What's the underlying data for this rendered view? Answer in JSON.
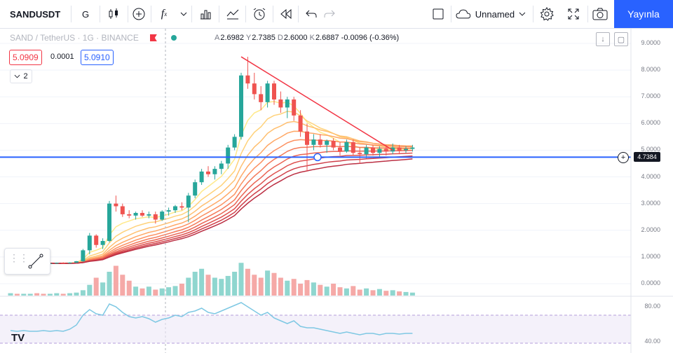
{
  "toolbar": {
    "symbol": "SANDUSDT",
    "interval": "G",
    "layout_name": "Unnamed",
    "publish_label": "Yayınla"
  },
  "legend": {
    "title": "SAND / TetherUS · 1G · BINANCE",
    "open_key": "A",
    "open": "2.6982",
    "high_key": "Y",
    "high": "2.7385",
    "low_key": "D",
    "low": "2.6000",
    "close_key": "K",
    "close": "2.6887",
    "change": "-0.0096 (-0.36%)",
    "sell_price": "5.0909",
    "spread": "0.0001",
    "buy_price": "5.0910",
    "indicators_count": "2"
  },
  "price_axis": [
    "9.0000",
    "8.0000",
    "7.0000",
    "6.0000",
    "5.0000",
    "4.0000",
    "3.0000",
    "2.0000",
    "1.0000",
    "0.0000"
  ],
  "current_price_label": "4.7384",
  "rsi_axis": [
    "80.00",
    "40.00"
  ],
  "logo": "TV",
  "colors": {
    "up": "#26a69a",
    "down": "#ef5350",
    "horizontal_line": "#2962ff",
    "trend_line": "#f23645",
    "rsi_line": "#7ec8e3",
    "publish": "#2962ff"
  },
  "chart_data": {
    "type": "candlestick",
    "series": [
      {
        "name": "SAND / TetherUS",
        "values": [
          [
            0.75,
            0.78,
            0.72,
            0.76
          ],
          [
            0.76,
            0.78,
            0.74,
            0.75
          ],
          [
            0.75,
            0.77,
            0.73,
            0.76
          ],
          [
            0.76,
            0.78,
            0.74,
            0.77
          ],
          [
            0.77,
            0.79,
            0.75,
            0.76
          ],
          [
            0.76,
            0.78,
            0.74,
            0.75
          ],
          [
            0.75,
            0.77,
            0.73,
            0.76
          ],
          [
            0.76,
            0.79,
            0.74,
            0.78
          ],
          [
            0.78,
            0.8,
            0.76,
            0.77
          ],
          [
            0.77,
            0.8,
            0.75,
            0.79
          ],
          [
            0.79,
            0.85,
            0.77,
            0.84
          ],
          [
            0.84,
            1.3,
            0.82,
            1.25
          ],
          [
            1.25,
            1.9,
            1.1,
            1.8
          ],
          [
            1.8,
            1.85,
            1.35,
            1.45
          ],
          [
            1.45,
            1.7,
            1.3,
            1.6
          ],
          [
            1.6,
            3.1,
            1.55,
            3.0
          ],
          [
            3.0,
            3.3,
            2.7,
            2.9
          ],
          [
            2.9,
            3.0,
            2.5,
            2.6
          ],
          [
            2.6,
            2.75,
            2.45,
            2.55
          ],
          [
            2.55,
            2.7,
            2.4,
            2.65
          ],
          [
            2.65,
            2.75,
            2.5,
            2.55
          ],
          [
            2.55,
            2.7,
            2.45,
            2.6
          ],
          [
            2.6,
            2.7,
            2.25,
            2.4
          ],
          [
            2.4,
            2.75,
            2.35,
            2.7
          ],
          [
            2.7,
            2.85,
            2.55,
            2.75
          ],
          [
            2.75,
            2.95,
            2.65,
            2.9
          ],
          [
            2.9,
            3.05,
            2.75,
            2.85
          ],
          [
            2.85,
            3.4,
            2.3,
            3.3
          ],
          [
            3.3,
            3.9,
            3.2,
            3.8
          ],
          [
            3.8,
            4.3,
            3.7,
            4.2
          ],
          [
            4.2,
            4.4,
            4.0,
            4.1
          ],
          [
            4.1,
            4.4,
            3.9,
            4.3
          ],
          [
            4.3,
            4.6,
            4.1,
            4.5
          ],
          [
            4.5,
            5.2,
            4.3,
            5.1
          ],
          [
            5.1,
            5.6,
            5.0,
            5.5
          ],
          [
            5.5,
            7.9,
            5.4,
            7.8
          ],
          [
            7.8,
            8.5,
            7.3,
            7.5
          ],
          [
            7.5,
            7.9,
            6.9,
            7.1
          ],
          [
            7.1,
            7.4,
            6.5,
            6.8
          ],
          [
            6.8,
            7.6,
            6.6,
            7.5
          ],
          [
            7.5,
            7.6,
            6.7,
            6.9
          ],
          [
            6.9,
            7.2,
            6.4,
            6.6
          ],
          [
            6.6,
            7.0,
            6.2,
            6.9
          ],
          [
            6.9,
            7.0,
            6.1,
            6.3
          ],
          [
            6.3,
            6.5,
            5.5,
            5.7
          ],
          [
            5.7,
            6.0,
            4.2,
            5.2
          ],
          [
            5.2,
            5.6,
            5.0,
            5.4
          ],
          [
            5.4,
            5.6,
            5.1,
            5.2
          ],
          [
            5.2,
            5.4,
            4.9,
            5.35
          ],
          [
            5.35,
            5.45,
            5.0,
            5.1
          ],
          [
            5.1,
            5.3,
            4.8,
            4.95
          ],
          [
            4.95,
            5.4,
            4.9,
            5.3
          ],
          [
            5.3,
            5.4,
            4.8,
            4.9
          ],
          [
            4.9,
            5.1,
            4.5,
            4.85
          ],
          [
            4.85,
            5.2,
            4.7,
            5.1
          ],
          [
            5.1,
            5.2,
            4.8,
            4.9
          ],
          [
            4.9,
            5.15,
            4.75,
            5.05
          ],
          [
            5.05,
            5.2,
            4.8,
            4.95
          ],
          [
            4.95,
            5.25,
            4.85,
            5.1
          ],
          [
            5.1,
            5.2,
            4.85,
            5.0
          ],
          [
            5.0,
            5.15,
            4.9,
            5.05
          ],
          [
            5.05,
            5.2,
            4.95,
            5.1
          ]
        ]
      }
    ],
    "volume": [
      4,
      3,
      3,
      3,
      4,
      3,
      3,
      4,
      3,
      4,
      5,
      9,
      18,
      30,
      22,
      40,
      50,
      35,
      25,
      15,
      12,
      15,
      10,
      12,
      14,
      16,
      20,
      30,
      40,
      45,
      35,
      30,
      28,
      33,
      40,
      55,
      45,
      35,
      30,
      42,
      38,
      30,
      25,
      28,
      20,
      26,
      22,
      18,
      15,
      20,
      14,
      12,
      16,
      10,
      12,
      9,
      11,
      8,
      9,
      7,
      6,
      5
    ],
    "rsi": [
      48,
      47,
      48,
      47,
      47,
      48,
      47,
      48,
      47,
      50,
      56,
      70,
      78,
      72,
      70,
      86,
      82,
      74,
      68,
      66,
      68,
      65,
      60,
      64,
      66,
      70,
      68,
      74,
      76,
      80,
      74,
      72,
      76,
      80,
      84,
      88,
      82,
      76,
      70,
      74,
      66,
      62,
      58,
      62,
      54,
      52,
      52,
      50,
      48,
      46,
      44,
      46,
      44,
      42,
      44,
      44,
      42,
      44,
      44,
      43,
      44,
      44
    ],
    "horizontal_line": 4.7384,
    "trend_line": [
      [
        35,
        8.5
      ],
      [
        58,
        5.0
      ]
    ],
    "ylim": [
      0,
      9.5
    ],
    "rsi_levels": [
      70,
      30
    ]
  }
}
